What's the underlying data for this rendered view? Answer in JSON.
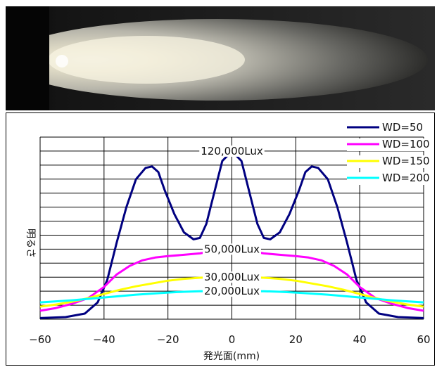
{
  "chart_data": {
    "type": "line",
    "xlabel": "発光面(mm)",
    "ylabel": "明るさ",
    "xlim": [
      -60,
      60
    ],
    "xticks": [
      -60,
      -40,
      -20,
      0,
      20,
      40,
      60
    ],
    "ylim": [
      0,
      130000
    ],
    "grid": true,
    "legend_position": "top-right",
    "annotations": [
      {
        "text": "120,000Lux",
        "x": 0,
        "y": 120000
      },
      {
        "text": "50,000Lux",
        "x": 0,
        "y": 50000
      },
      {
        "text": "30,000Lux",
        "x": 0,
        "y": 30000
      },
      {
        "text": "20,000Lux",
        "x": 0,
        "y": 20000
      }
    ],
    "series": [
      {
        "name": "WD=50",
        "color": "#000080",
        "x": [
          -60,
          -52,
          -46,
          -42,
          -39,
          -36,
          -33,
          -30,
          -27,
          -25,
          -23,
          -21,
          -18,
          -15,
          -12,
          -10,
          -8,
          -5,
          -3,
          0,
          3,
          5,
          8,
          10,
          12,
          15,
          18,
          21,
          23,
          25,
          27,
          30,
          33,
          36,
          39,
          42,
          46,
          52,
          60
        ],
        "y": [
          800,
          1500,
          4000,
          12000,
          28000,
          55000,
          80000,
          100000,
          108000,
          109000,
          105000,
          92000,
          75000,
          62000,
          57000,
          58000,
          68000,
          95000,
          113000,
          120000,
          113000,
          95000,
          68000,
          58000,
          57000,
          62000,
          75000,
          92000,
          105000,
          109000,
          108000,
          100000,
          80000,
          55000,
          28000,
          12000,
          4000,
          1500,
          800
        ]
      },
      {
        "name": "WD=100",
        "color": "#ff00ff",
        "x": [
          -60,
          -55,
          -50,
          -45,
          -40,
          -36,
          -32,
          -28,
          -24,
          -20,
          -15,
          -10,
          -5,
          0,
          5,
          10,
          15,
          20,
          24,
          28,
          32,
          36,
          40,
          45,
          50,
          55,
          60
        ],
        "y": [
          6000,
          8000,
          11000,
          15000,
          23000,
          32000,
          38000,
          42000,
          44000,
          45000,
          46000,
          47000,
          49000,
          50000,
          49000,
          47000,
          46000,
          45000,
          44000,
          42000,
          38000,
          32000,
          23000,
          15000,
          11000,
          8000,
          6000
        ]
      },
      {
        "name": "WD=150",
        "color": "#ffff00",
        "x": [
          -60,
          -55,
          -50,
          -45,
          -40,
          -35,
          -30,
          -25,
          -20,
          -15,
          -10,
          -5,
          0,
          5,
          10,
          15,
          20,
          25,
          30,
          35,
          40,
          45,
          50,
          55,
          60
        ],
        "y": [
          9000,
          10500,
          12500,
          15000,
          18000,
          21000,
          23500,
          25500,
          27500,
          28800,
          29600,
          30000,
          30000,
          30000,
          29600,
          28800,
          27500,
          25500,
          23500,
          21000,
          18000,
          15000,
          12500,
          10500,
          9000
        ]
      },
      {
        "name": "WD=200",
        "color": "#00ffff",
        "x": [
          -60,
          -50,
          -40,
          -30,
          -20,
          -15,
          -10,
          -5,
          0,
          5,
          10,
          15,
          20,
          30,
          40,
          50,
          60
        ],
        "y": [
          12000,
          13500,
          15500,
          17500,
          19000,
          19600,
          20000,
          20000,
          20000,
          20000,
          20000,
          19600,
          19000,
          17500,
          15500,
          13500,
          12000
        ]
      }
    ]
  }
}
